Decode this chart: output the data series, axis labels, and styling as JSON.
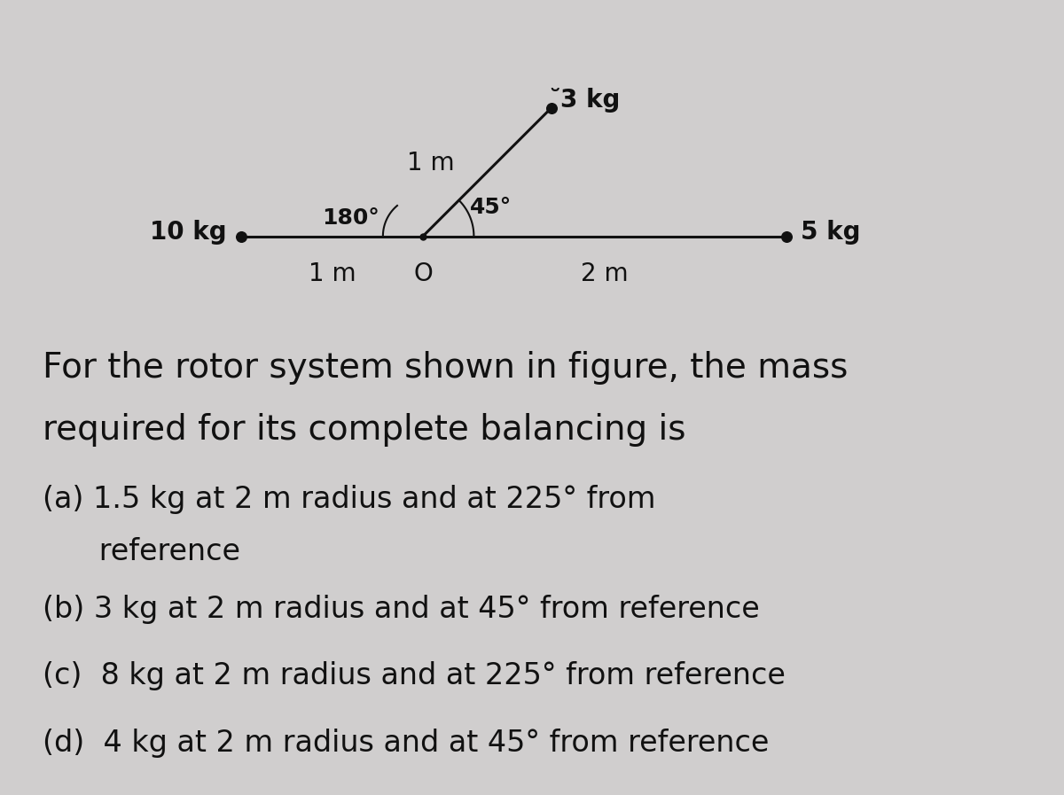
{
  "bg_color": "#d0cece",
  "fig_width": 12.0,
  "fig_height": 8.97,
  "dpi": 100,
  "left_mass_label": "10 kg",
  "right_mass_label": "5 kg",
  "top_mass_label": "̆3 kg",
  "left_dist_label": "1 m",
  "right_dist_label": "2 m",
  "top_dist_label": "1 m",
  "angle_180_label": "180°",
  "angle_45_label": "45°",
  "origin_label": "O",
  "question_line1": "For the rotor system shown in figure, the mass",
  "question_line2": "required for its complete balancing is",
  "option_a_line1": "(a) 1.5 kg at 2 m radius and at 225° from",
  "option_a_line2": "      reference",
  "option_b": "(b) 3 kg at 2 m radius and at 45° from reference",
  "option_c": "(c)  8 kg at 2 m radius and at 225° from reference",
  "option_d": "(d)  4 kg at 2 m radius and at 45° from reference",
  "text_color": "#111111",
  "line_color": "#111111",
  "dot_color": "#111111",
  "question_fontsize": 28,
  "option_fontsize": 24,
  "diagram_fontsize": 20
}
